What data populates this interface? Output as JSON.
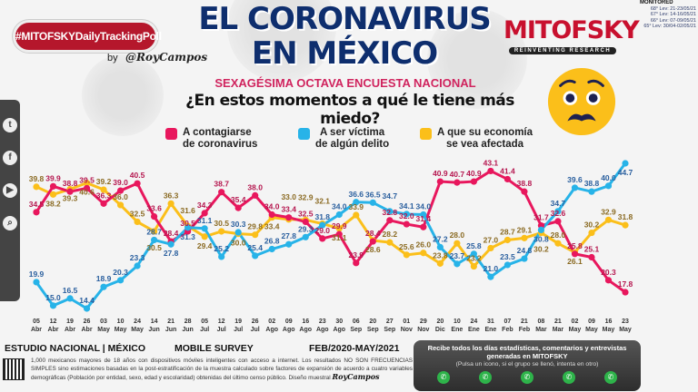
{
  "header": {
    "hashtag": "#MITOFSKYDailyTrackingPoll",
    "by": "by",
    "author": "@RoyCampos",
    "title_line1": "EL CORONAVIRUS",
    "title_line2": "EN MÉXICO",
    "subtitle": "SEXAGÉSIMA OCTAVA ENCUESTA NACIONAL",
    "brand": "MITOFSKY",
    "brand_tagline": "REINVENTING RESEARCH"
  },
  "social": {
    "icons": [
      "twitter-icon",
      "facebook-icon",
      "youtube-icon",
      "search-icon"
    ]
  },
  "monitored": {
    "title": "MONITORED",
    "items": [
      "68° Lev: 21-23/05/21",
      "67° Lev: 14-16/05/21",
      "66° Lev: 07-09/05/21",
      "65° Lev: 30/04-02/05/21"
    ]
  },
  "chart_data": {
    "type": "line",
    "title": "¿En estos momentos a qué le tiene más miedo?",
    "xlabel": "",
    "ylabel": "",
    "ylim": [
      10,
      50
    ],
    "grid": false,
    "legend_position": "top",
    "categories": [
      [
        "05",
        "Abr"
      ],
      [
        "12",
        "Abr"
      ],
      [
        "19",
        "Abr"
      ],
      [
        "26",
        "Abr"
      ],
      [
        "03",
        "May"
      ],
      [
        "10",
        "May"
      ],
      [
        "24",
        "May"
      ],
      [
        "14",
        "Jun"
      ],
      [
        "21",
        "Jun"
      ],
      [
        "28",
        "Jun"
      ],
      [
        "05",
        "Jul"
      ],
      [
        "12",
        "Jul"
      ],
      [
        "19",
        "Jul"
      ],
      [
        "26",
        "Jul"
      ],
      [
        "02",
        "Ago"
      ],
      [
        "09",
        "Ago"
      ],
      [
        "16",
        "Ago"
      ],
      [
        "23",
        "Ago"
      ],
      [
        "30",
        "Ago"
      ],
      [
        "06",
        "Sep"
      ],
      [
        "20",
        "Sep"
      ],
      [
        "27",
        "Sep"
      ],
      [
        "01",
        "Nov"
      ],
      [
        "29",
        "Nov"
      ],
      [
        "20",
        "Dic"
      ],
      [
        "10",
        "Ene"
      ],
      [
        "24",
        "Ene"
      ],
      [
        "31",
        "Ene"
      ],
      [
        "07",
        "Feb"
      ],
      [
        "21",
        "Feb"
      ],
      [
        "08",
        "Mar"
      ],
      [
        "21",
        "Mar"
      ],
      [
        "02",
        "May"
      ],
      [
        "09",
        "May"
      ],
      [
        "16",
        "May"
      ],
      [
        "23",
        "May"
      ]
    ],
    "series": [
      {
        "name": "A contagiarse de coronavirus",
        "line1": "A contagiarse",
        "line2": "de coronavirus",
        "color": "#e8175d",
        "label_color": "#b5174f",
        "values": [
          34.5,
          39.9,
          38.8,
          39.5,
          36.3,
          39.0,
          40.5,
          33.6,
          28.4,
          30.5,
          34.3,
          38.7,
          35.4,
          38.0,
          34.0,
          33.4,
          32.5,
          29.0,
          29.9,
          23.9,
          28.4,
          32.8,
          32.0,
          31.4,
          40.9,
          40.7,
          40.9,
          43.1,
          41.4,
          38.8,
          31.7,
          32.6,
          25.8,
          25.1,
          20.3,
          17.8
        ]
      },
      {
        "name": "A ser víctima de algún delito",
        "line1": "A ser víctima",
        "line2": "de algún delito",
        "color": "#27b3e8",
        "label_color": "#2a5f9e",
        "values": [
          19.9,
          15.0,
          16.5,
          14.4,
          18.9,
          20.3,
          23.3,
          28.7,
          27.8,
          31.3,
          31.1,
          25.2,
          30.3,
          25.4,
          26.8,
          27.8,
          29.3,
          31.8,
          34.0,
          36.6,
          36.5,
          34.7,
          34.1,
          34.0,
          27.2,
          23.7,
          25.8,
          21.0,
          23.5,
          24.8,
          30.8,
          34.7,
          39.6,
          38.8,
          40.0,
          44.7
        ]
      },
      {
        "name": "A que su economía se vea afectada",
        "line1": "A que su economía",
        "line2": "se vea afectada",
        "color": "#fbbf1a",
        "label_color": "#8a6a22",
        "values": [
          39.8,
          38.2,
          39.3,
          40.6,
          39.2,
          36.0,
          32.5,
          30.5,
          36.3,
          31.6,
          29.4,
          30.5,
          30.0,
          29.8,
          33.4,
          33.0,
          32.9,
          32.1,
          31.1,
          33.9,
          28.6,
          28.2,
          25.6,
          26.0,
          23.8,
          28.0,
          23.2,
          27.0,
          28.7,
          29.1,
          30.2,
          28.0,
          26.1,
          30.2,
          32.9,
          31.8
        ]
      }
    ]
  },
  "footer": {
    "study": "ESTUDIO NACIONAL | MÉXICO",
    "mode": "MOBILE SURVEY",
    "period": "FEB/2020-MAY/2021",
    "methodology": "1,000 mexicanos mayores de 18 años con dispositivos móviles inteligentes con acceso a internet. Los resultados NO SON FRECUENCIAS SIMPLES sino estimaciones basadas en la post-estratificación de la muestra calculado sobre factores de expansión de acuerdo a cuatro variables demográficas (Población por entidad, sexo, edad y escolaridad) obtenidas del último censo público. Diseño muestral",
    "signature": "RoyCampos"
  },
  "whatsapp": {
    "line1": "Recibe todos los días estadísticas, comentarios y entrevistas generadas en",
    "brand": "MITOFSKY",
    "line2": "(Pulsa un icono, si el grupo se llenó, intenta en otro)",
    "buttons": 5
  }
}
